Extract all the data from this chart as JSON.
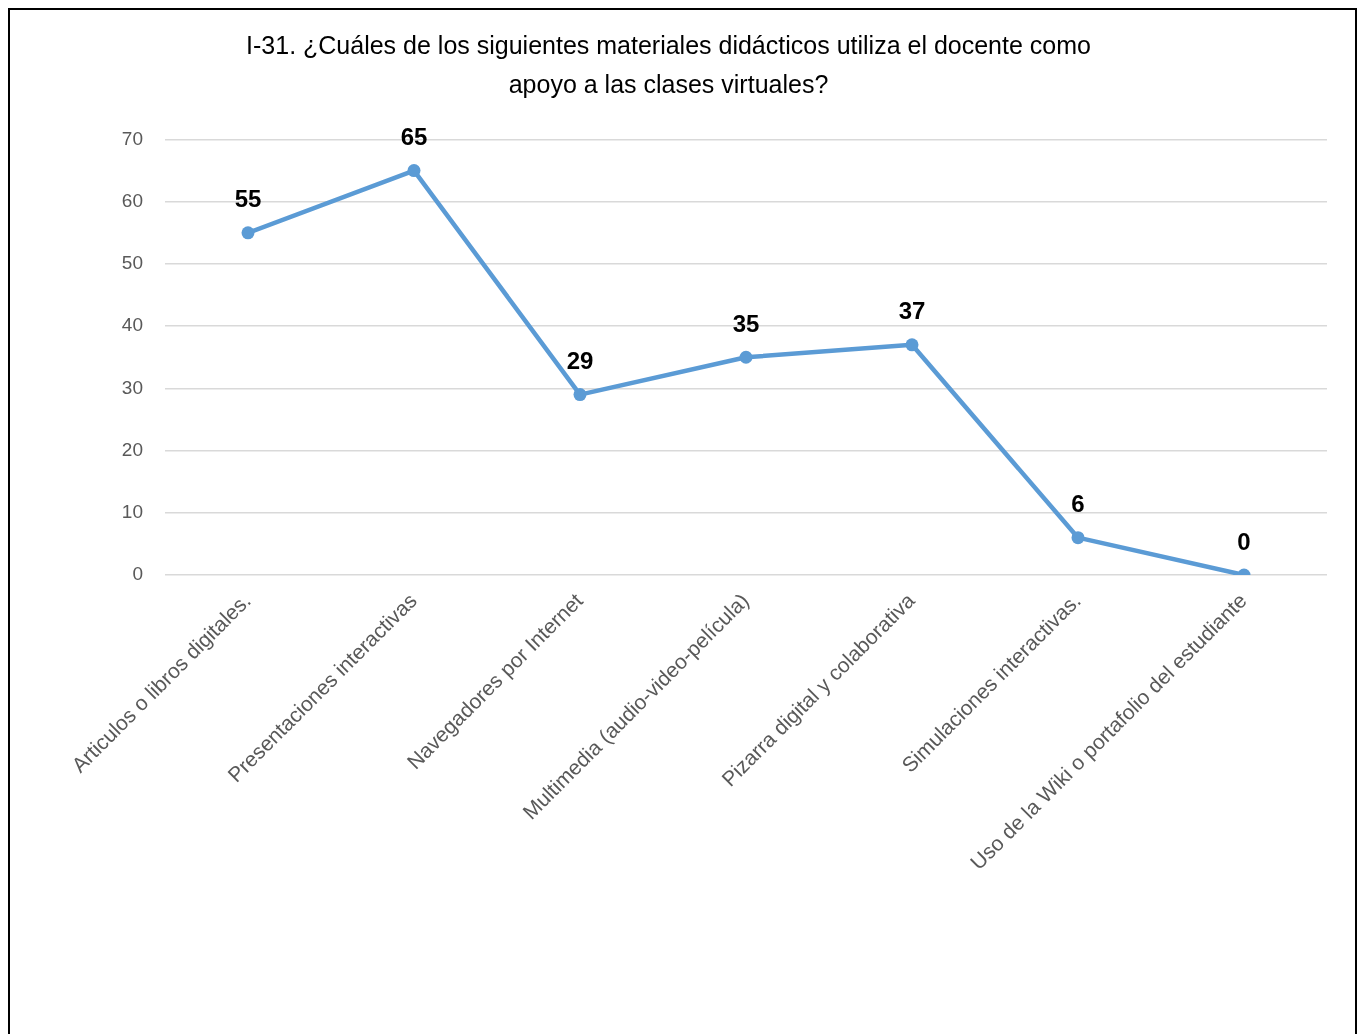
{
  "chart_data": {
    "type": "line",
    "title": "I-31. ¿Cuáles de los siguientes materiales didácticos utiliza el docente como apoyo a las clases virtuales?",
    "categories": [
      "Articulos o libros digitales.",
      "Presentaciones interactivas",
      "Navegadores por Internet",
      "Multimedia (audio-video-película)",
      "Pizarra digital y colaborativa",
      "Simulaciones interactivas.",
      "Uso de la Wiki o portafolio del estudiante"
    ],
    "series": [
      {
        "color": "#5b9bd5",
        "values": [
          55,
          65,
          29,
          35,
          37,
          6,
          0
        ]
      }
    ],
    "ylim": [
      0,
      70
    ],
    "yticks": [
      0,
      10,
      20,
      30,
      40,
      50,
      60,
      70
    ],
    "grid": "y",
    "legend": false,
    "marker": "circle",
    "line_style": "solid",
    "data_labels": true
  }
}
